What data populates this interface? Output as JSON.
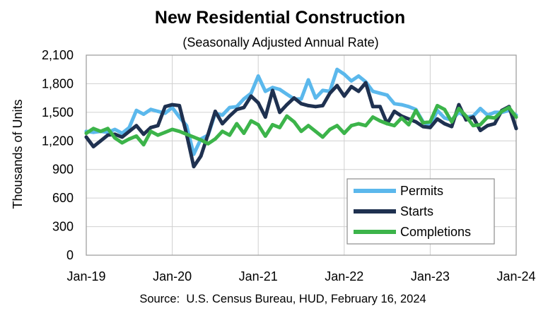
{
  "chart_data": {
    "type": "line",
    "title": "New Residential Construction",
    "subtitle": "(Seasonally Adjusted Annual Rate)",
    "xlabel": "",
    "ylabel": "Thousands of Units",
    "source": "Source:  U.S. Census Bureau, HUD, February 16, 2024",
    "ylim": [
      0,
      2100
    ],
    "y_ticks": [
      "0",
      "300",
      "600",
      "900",
      "1,200",
      "1,500",
      "1,800",
      "2,100"
    ],
    "x_ticks": [
      "Jan-19",
      "Jan-20",
      "Jan-21",
      "Jan-22",
      "Jan-23",
      "Jan-24"
    ],
    "grid": true,
    "legend_position": "bottom-right",
    "x": [
      "Jan-19",
      "Feb-19",
      "Mar-19",
      "Apr-19",
      "May-19",
      "Jun-19",
      "Jul-19",
      "Aug-19",
      "Sep-19",
      "Oct-19",
      "Nov-19",
      "Dec-19",
      "Jan-20",
      "Feb-20",
      "Mar-20",
      "Apr-20",
      "May-20",
      "Jun-20",
      "Jul-20",
      "Aug-20",
      "Sep-20",
      "Oct-20",
      "Nov-20",
      "Dec-20",
      "Jan-21",
      "Feb-21",
      "Mar-21",
      "Apr-21",
      "May-21",
      "Jun-21",
      "Jul-21",
      "Aug-21",
      "Sep-21",
      "Oct-21",
      "Nov-21",
      "Dec-21",
      "Jan-22",
      "Feb-22",
      "Mar-22",
      "Apr-22",
      "May-22",
      "Jun-22",
      "Jul-22",
      "Aug-22",
      "Sep-22",
      "Oct-22",
      "Nov-22",
      "Dec-22",
      "Jan-23",
      "Feb-23",
      "Mar-23",
      "Apr-23",
      "May-23",
      "Jun-23",
      "Jul-23",
      "Aug-23",
      "Sep-23",
      "Oct-23",
      "Nov-23",
      "Dec-23",
      "Jan-24"
    ],
    "series": [
      {
        "name": "Permits",
        "color": "#5BB8EC",
        "values": [
          1300,
          1290,
          1300,
          1290,
          1320,
          1280,
          1340,
          1520,
          1480,
          1530,
          1510,
          1490,
          1550,
          1450,
          1360,
          1060,
          1220,
          1260,
          1490,
          1470,
          1550,
          1560,
          1640,
          1700,
          1880,
          1720,
          1760,
          1740,
          1690,
          1640,
          1640,
          1840,
          1650,
          1730,
          1720,
          1950,
          1900,
          1830,
          1880,
          1820,
          1720,
          1700,
          1680,
          1590,
          1580,
          1560,
          1530,
          1400,
          1350,
          1520,
          1440,
          1420,
          1500,
          1450,
          1460,
          1540,
          1470,
          1500,
          1500,
          1520,
          1470
        ]
      },
      {
        "name": "Starts",
        "color": "#1F3150",
        "values": [
          1240,
          1140,
          1200,
          1260,
          1270,
          1240,
          1300,
          1360,
          1270,
          1340,
          1360,
          1560,
          1580,
          1570,
          1270,
          930,
          1040,
          1270,
          1510,
          1380,
          1460,
          1530,
          1550,
          1670,
          1600,
          1450,
          1730,
          1500,
          1580,
          1650,
          1590,
          1570,
          1560,
          1570,
          1700,
          1780,
          1670,
          1770,
          1720,
          1810,
          1560,
          1560,
          1380,
          1510,
          1460,
          1430,
          1400,
          1350,
          1340,
          1430,
          1380,
          1350,
          1580,
          1420,
          1450,
          1310,
          1360,
          1380,
          1520,
          1560,
          1330
        ]
      },
      {
        "name": "Completions",
        "color": "#3CB44A",
        "values": [
          1280,
          1330,
          1300,
          1330,
          1230,
          1180,
          1220,
          1250,
          1160,
          1300,
          1260,
          1290,
          1320,
          1300,
          1270,
          1240,
          1210,
          1170,
          1220,
          1300,
          1260,
          1380,
          1280,
          1410,
          1370,
          1250,
          1370,
          1340,
          1460,
          1400,
          1300,
          1360,
          1300,
          1240,
          1320,
          1360,
          1280,
          1360,
          1380,
          1360,
          1450,
          1410,
          1380,
          1360,
          1440,
          1370,
          1520,
          1390,
          1400,
          1570,
          1530,
          1400,
          1540,
          1460,
          1360,
          1370,
          1450,
          1440,
          1510,
          1550,
          1450
        ]
      }
    ]
  }
}
